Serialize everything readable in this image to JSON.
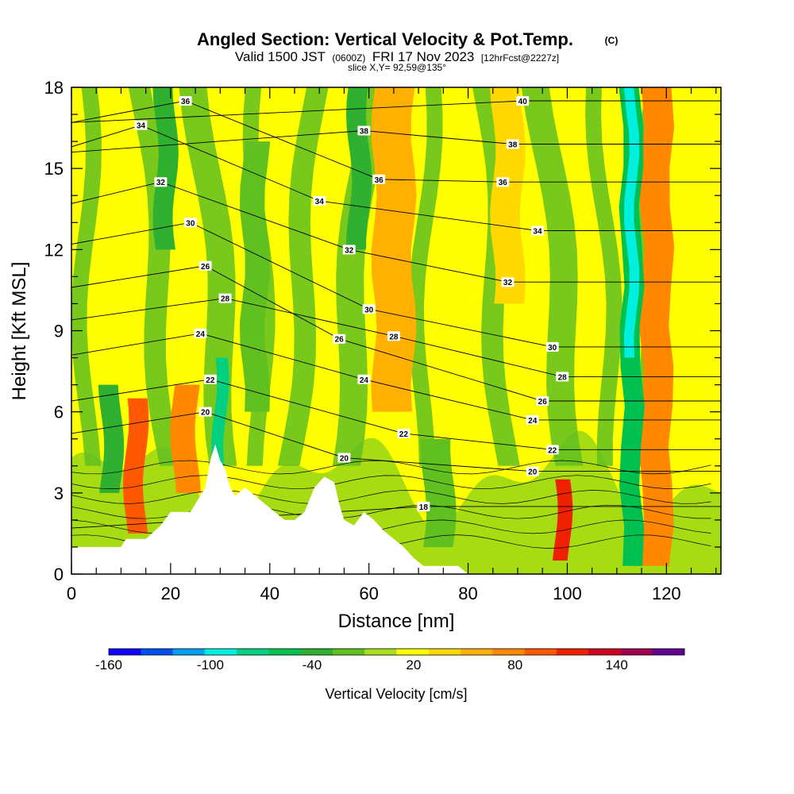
{
  "chart_data": {
    "type": "heatmap",
    "title": "Angled Section: Vertical Velocity & Pot.Temp.",
    "title_units": "(C)",
    "subtitle_prefix": "Valid 1500 JST",
    "subtitle_zulu": "(0600Z)",
    "subtitle_date": "FRI 17 Nov 2023",
    "subtitle_fcst": "[12hrFcst@2227z]",
    "slice_label": "slice X,Y= 92,59@135°",
    "xlabel": "Distance [nm]",
    "ylabel": "Height [Kft MSL]",
    "xlim": [
      0,
      131
    ],
    "ylim": [
      0,
      18
    ],
    "x_ticks": [
      "0",
      "20",
      "40",
      "60",
      "80",
      "100",
      "120"
    ],
    "x_tick_values": [
      0,
      20,
      40,
      60,
      80,
      100,
      120
    ],
    "y_ticks": [
      "0",
      "3",
      "6",
      "9",
      "12",
      "15",
      "18"
    ],
    "y_tick_values": [
      0,
      3,
      6,
      9,
      12,
      15,
      18
    ],
    "grid": false,
    "colorbar": {
      "title": "Vertical Velocity [cm/s]",
      "labels": [
        "-160",
        "-100",
        "-40",
        "20",
        "80",
        "140"
      ],
      "label_values": [
        -160,
        -100,
        -40,
        20,
        80,
        140
      ],
      "min": -160,
      "max": 180,
      "colors": [
        "#1200ff",
        "#0050f0",
        "#00a0f0",
        "#00f0e0",
        "#00d080",
        "#00c050",
        "#30b030",
        "#60c020",
        "#a8e020",
        "#ffff00",
        "#ffd800",
        "#ffb000",
        "#ff8800",
        "#ff5800",
        "#ee2000",
        "#d00020",
        "#a00050",
        "#600090"
      ]
    },
    "terrain_kft": [
      [
        0,
        1.0
      ],
      [
        5,
        1.0
      ],
      [
        10,
        1.0
      ],
      [
        11,
        1.3
      ],
      [
        15,
        1.3
      ],
      [
        18,
        1.8
      ],
      [
        20,
        2.3
      ],
      [
        24,
        2.3
      ],
      [
        25,
        2.6
      ],
      [
        27,
        3.2
      ],
      [
        28,
        4.2
      ],
      [
        29,
        4.8
      ],
      [
        30,
        4.2
      ],
      [
        31,
        3.9
      ],
      [
        32,
        3.2
      ],
      [
        33,
        2.9
      ],
      [
        35,
        3.2
      ],
      [
        37,
        2.9
      ],
      [
        39,
        2.6
      ],
      [
        41,
        2.3
      ],
      [
        43,
        2.0
      ],
      [
        45,
        2.0
      ],
      [
        47,
        2.3
      ],
      [
        49,
        3.2
      ],
      [
        51,
        3.6
      ],
      [
        53,
        3.4
      ],
      [
        54,
        2.6
      ],
      [
        55,
        2.0
      ],
      [
        57,
        1.8
      ],
      [
        59,
        2.3
      ],
      [
        61,
        2.0
      ],
      [
        63,
        1.6
      ],
      [
        65,
        1.3
      ],
      [
        67,
        1.0
      ],
      [
        69,
        0.6
      ],
      [
        71,
        0.3
      ],
      [
        78,
        0.3
      ],
      [
        80,
        0.0
      ],
      [
        131,
        0.0
      ]
    ],
    "theta_contours": [
      {
        "value": 18,
        "label": "18",
        "label_x": 71,
        "label_y": 2.5
      },
      {
        "value": 20,
        "label": "20",
        "label_x": 27,
        "label_y": 6.0
      },
      {
        "value": 20,
        "label": "20",
        "label_x": 55,
        "label_y": 4.3
      },
      {
        "value": 20,
        "label": "20",
        "label_x": 93,
        "label_y": 3.8
      },
      {
        "value": 22,
        "label": "22",
        "label_x": 28,
        "label_y": 7.2
      },
      {
        "value": 22,
        "label": "22",
        "label_x": 67,
        "label_y": 5.2
      },
      {
        "value": 22,
        "label": "22",
        "label_x": 97,
        "label_y": 4.6
      },
      {
        "value": 24,
        "label": "24",
        "label_x": 26,
        "label_y": 8.9
      },
      {
        "value": 24,
        "label": "24",
        "label_x": 59,
        "label_y": 7.2
      },
      {
        "value": 24,
        "label": "24",
        "label_x": 93,
        "label_y": 5.7
      },
      {
        "value": 26,
        "label": "26",
        "label_x": 27,
        "label_y": 11.4
      },
      {
        "value": 26,
        "label": "26",
        "label_x": 54,
        "label_y": 8.7
      },
      {
        "value": 26,
        "label": "26",
        "label_x": 95,
        "label_y": 6.4
      },
      {
        "value": 28,
        "label": "28",
        "label_x": 31,
        "label_y": 10.2
      },
      {
        "value": 28,
        "label": "28",
        "label_x": 65,
        "label_y": 8.8
      },
      {
        "value": 28,
        "label": "28",
        "label_x": 99,
        "label_y": 7.3
      },
      {
        "value": 30,
        "label": "30",
        "label_x": 24,
        "label_y": 13.0
      },
      {
        "value": 30,
        "label": "30",
        "label_x": 60,
        "label_y": 9.8
      },
      {
        "value": 30,
        "label": "30",
        "label_x": 97,
        "label_y": 8.4
      },
      {
        "value": 32,
        "label": "32",
        "label_x": 18,
        "label_y": 14.5
      },
      {
        "value": 32,
        "label": "32",
        "label_x": 56,
        "label_y": 12.0
      },
      {
        "value": 32,
        "label": "32",
        "label_x": 88,
        "label_y": 10.8
      },
      {
        "value": 34,
        "label": "34",
        "label_x": 14,
        "label_y": 16.6
      },
      {
        "value": 34,
        "label": "34",
        "label_x": 50,
        "label_y": 13.8
      },
      {
        "value": 34,
        "label": "34",
        "label_x": 94,
        "label_y": 12.7
      },
      {
        "value": 36,
        "label": "36",
        "label_x": 23,
        "label_y": 17.5
      },
      {
        "value": 36,
        "label": "36",
        "label_x": 62,
        "label_y": 14.6
      },
      {
        "value": 36,
        "label": "36",
        "label_x": 87,
        "label_y": 14.5
      },
      {
        "value": 38,
        "label": "38",
        "label_x": 59,
        "label_y": 16.4
      },
      {
        "value": 38,
        "label": "38",
        "label_x": 89,
        "label_y": 15.9
      },
      {
        "value": 40,
        "label": "40",
        "label_x": 91,
        "label_y": 17.5
      }
    ],
    "velocity_bands": [
      {
        "x": 13,
        "w": 2.0,
        "y0": 1.5,
        "y1": 6.5,
        "v": 90
      },
      {
        "x": 23,
        "w": 2.5,
        "y0": 3.0,
        "y1": 7.0,
        "v": 70
      },
      {
        "x": 65,
        "w": 4.0,
        "y0": 6.0,
        "y1": 18.0,
        "v": 60
      },
      {
        "x": 88,
        "w": 3.0,
        "y0": 10.0,
        "y1": 18.0,
        "v": 40
      },
      {
        "x": 99,
        "w": 1.5,
        "y0": 0.5,
        "y1": 3.5,
        "v": 120
      },
      {
        "x": 118,
        "w": 3.0,
        "y0": 0.3,
        "y1": 18.0,
        "v": 70
      },
      {
        "x": 113,
        "w": 2.0,
        "y0": 0.3,
        "y1": 18.0,
        "v": -60
      },
      {
        "x": 113,
        "w": 1.0,
        "y0": 8.0,
        "y1": 18.0,
        "v": -100
      },
      {
        "x": 19,
        "w": 2.0,
        "y0": 12.0,
        "y1": 18.0,
        "v": -30
      },
      {
        "x": 37,
        "w": 2.5,
        "y0": 6.0,
        "y1": 16.0,
        "v": -20
      },
      {
        "x": 58,
        "w": 2.0,
        "y0": 12.0,
        "y1": 18.0,
        "v": -40
      },
      {
        "x": 30,
        "w": 1.2,
        "y0": 4.0,
        "y1": 8.0,
        "v": -80
      },
      {
        "x": 8,
        "w": 2.0,
        "y0": 3.0,
        "y1": 7.0,
        "v": -30
      },
      {
        "x": 74,
        "w": 3.0,
        "y0": 1.0,
        "y1": 5.0,
        "v": -20
      }
    ]
  }
}
